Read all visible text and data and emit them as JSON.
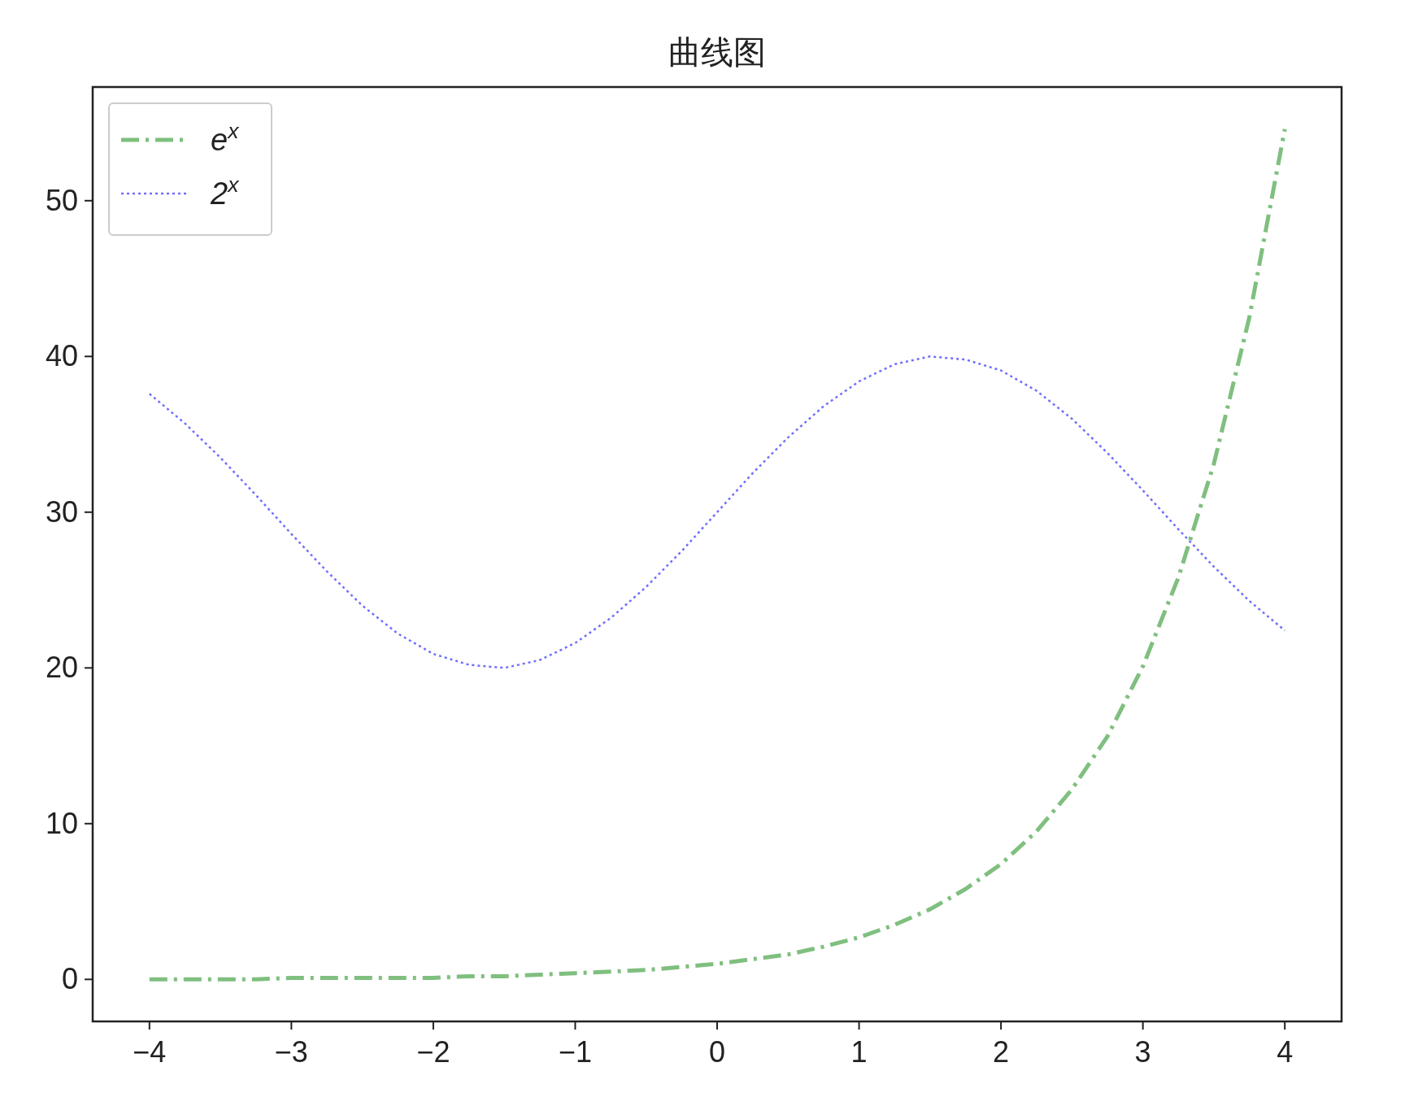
{
  "chart_data": {
    "type": "line",
    "title": "曲线图",
    "x": [
      -4,
      -3.75,
      -3.5,
      -3.25,
      -3,
      -2.75,
      -2.5,
      -2.25,
      -2,
      -1.75,
      -1.5,
      -1.25,
      -1,
      -0.75,
      -0.5,
      -0.25,
      0,
      0.25,
      0.5,
      0.75,
      1,
      1.25,
      1.5,
      1.75,
      2,
      2.25,
      2.5,
      2.75,
      3,
      3.25,
      3.5,
      3.75,
      4
    ],
    "series": [
      {
        "name": "e$^{x}$",
        "color": "#7fbf7f",
        "line_style": "dashdot",
        "values": [
          0,
          0,
          0,
          0,
          0.1,
          0.1,
          0.1,
          0.1,
          0.1,
          0.2,
          0.2,
          0.3,
          0.4,
          0.5,
          0.6,
          0.8,
          1,
          1.3,
          1.6,
          2.1,
          2.7,
          3.5,
          4.5,
          5.8,
          7.4,
          9.5,
          12.2,
          15.6,
          20.1,
          25.8,
          33.1,
          42.5,
          54.6
        ]
      },
      {
        "name": "2$^{x}$",
        "color": "#6f6fff",
        "line_style": "dotted",
        "values": [
          37.6,
          35.7,
          33.5,
          31.1,
          28.6,
          26.2,
          24.0,
          22.2,
          20.9,
          20.2,
          20.0,
          20.5,
          21.6,
          23.2,
          25.2,
          27.5,
          30,
          32.5,
          34.8,
          36.8,
          38.4,
          39.5,
          40.0,
          39.8,
          39.1,
          37.8,
          36.0,
          33.8,
          31.4,
          28.9,
          26.5,
          24.3,
          22.4
        ]
      }
    ],
    "xlim": [
      -4.4,
      4.4
    ],
    "ylim": [
      -2.7,
      57.3
    ],
    "xticks": [
      -4,
      -3,
      -2,
      -1,
      0,
      1,
      2,
      3,
      4
    ],
    "yticks": [
      0,
      10,
      20,
      30,
      40,
      50
    ],
    "grid": false,
    "legend": "top left"
  }
}
